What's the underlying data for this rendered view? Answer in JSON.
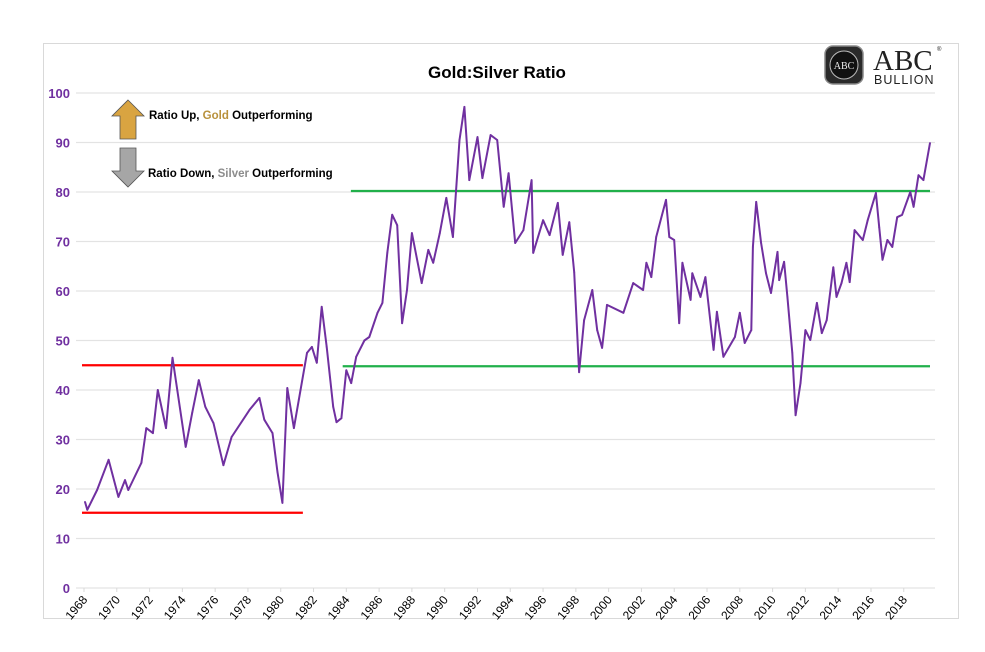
{
  "chart_data": {
    "type": "line",
    "title": "Gold:Silver Ratio",
    "xlabel": "",
    "ylabel": "",
    "xlim": [
      1968,
      2019.6
    ],
    "ylim": [
      0,
      100
    ],
    "yticks": [
      0,
      10,
      20,
      30,
      40,
      50,
      60,
      70,
      80,
      90,
      100
    ],
    "xticks": [
      1968,
      1970,
      1972,
      1974,
      1976,
      1978,
      1980,
      1982,
      1984,
      1986,
      1988,
      1990,
      1992,
      1994,
      1996,
      1998,
      2000,
      2002,
      2004,
      2006,
      2008,
      2010,
      2012,
      2014,
      2016,
      2018
    ],
    "grid": true,
    "legend": {
      "placement": "top-left",
      "up": {
        "prefix": "Ratio Up, ",
        "highlight": "Gold",
        "suffix": " Outperforming",
        "arrow_color": "#d9a441",
        "highlight_color": "#b8913c"
      },
      "down": {
        "prefix": "Ratio Down, ",
        "highlight": "Silver",
        "suffix": " Outperforming",
        "arrow_color": "#a6a6a6",
        "highlight_color": "#8c8c8c"
      }
    },
    "line_color": "#7030a0",
    "series": [
      {
        "points": [
          [
            1968.06,
            17.4
          ],
          [
            1968.2,
            15.8
          ],
          [
            1968.8,
            19.8
          ],
          [
            1969.5,
            25.9
          ],
          [
            1970.1,
            18.4
          ],
          [
            1970.5,
            21.8
          ],
          [
            1970.7,
            19.8
          ],
          [
            1971.5,
            25.3
          ],
          [
            1971.8,
            32.3
          ],
          [
            1972.2,
            31.3
          ],
          [
            1972.5,
            40
          ],
          [
            1973.0,
            32.3
          ],
          [
            1973.4,
            46.5
          ],
          [
            1974.2,
            28.5
          ],
          [
            1974.6,
            35.4
          ],
          [
            1975.0,
            42
          ],
          [
            1975.4,
            36.6
          ],
          [
            1975.9,
            33.3
          ],
          [
            1976.5,
            24.8
          ],
          [
            1977.0,
            30.5
          ],
          [
            1978.1,
            36
          ],
          [
            1978.7,
            38.4
          ],
          [
            1979.0,
            34
          ],
          [
            1979.5,
            31.3
          ],
          [
            1979.8,
            23.4
          ],
          [
            1980.1,
            17.2
          ],
          [
            1980.4,
            40.4
          ],
          [
            1980.8,
            32.3
          ],
          [
            1981.1,
            38
          ],
          [
            1981.6,
            47.5
          ],
          [
            1981.9,
            48.7
          ],
          [
            1982.2,
            45.5
          ],
          [
            1982.5,
            56.8
          ],
          [
            1982.8,
            48.7
          ],
          [
            1983.2,
            36.6
          ],
          [
            1983.4,
            33.5
          ],
          [
            1983.7,
            34.3
          ],
          [
            1984.0,
            44
          ],
          [
            1984.3,
            41.4
          ],
          [
            1984.6,
            46.7
          ],
          [
            1985.1,
            50
          ],
          [
            1985.4,
            50.7
          ],
          [
            1985.9,
            55.6
          ],
          [
            1986.2,
            57.6
          ],
          [
            1986.5,
            67.7
          ],
          [
            1986.8,
            75.4
          ],
          [
            1987.1,
            73.3
          ],
          [
            1987.4,
            53.5
          ],
          [
            1987.7,
            60.2
          ],
          [
            1988.0,
            71.7
          ],
          [
            1988.6,
            61.6
          ],
          [
            1989.0,
            68.3
          ],
          [
            1989.3,
            65.7
          ],
          [
            1989.7,
            71.7
          ],
          [
            1990.1,
            78.8
          ],
          [
            1990.5,
            70.9
          ],
          [
            1990.9,
            90.5
          ],
          [
            1991.2,
            97.2
          ],
          [
            1991.5,
            82.4
          ],
          [
            1992.0,
            91.1
          ],
          [
            1992.3,
            82.8
          ],
          [
            1992.8,
            91.5
          ],
          [
            1993.2,
            90.5
          ],
          [
            1993.6,
            77
          ],
          [
            1993.9,
            83.8
          ],
          [
            1994.3,
            69.7
          ],
          [
            1994.8,
            72.3
          ],
          [
            1995.3,
            82.4
          ],
          [
            1995.4,
            67.7
          ],
          [
            1996.0,
            74.3
          ],
          [
            1996.4,
            71.3
          ],
          [
            1996.9,
            77.8
          ],
          [
            1997.2,
            67.3
          ],
          [
            1997.6,
            73.9
          ],
          [
            1997.9,
            63.8
          ],
          [
            1998.2,
            43.6
          ],
          [
            1998.5,
            54.1
          ],
          [
            1999.0,
            60.2
          ],
          [
            1999.3,
            52.1
          ],
          [
            1999.6,
            48.5
          ],
          [
            1999.9,
            57.2
          ],
          [
            2000.9,
            55.6
          ],
          [
            2001.5,
            61.6
          ],
          [
            2002.1,
            60.2
          ],
          [
            2002.3,
            65.7
          ],
          [
            2002.6,
            62.8
          ],
          [
            2002.9,
            70.9
          ],
          [
            2003.5,
            78.4
          ],
          [
            2003.7,
            70.9
          ],
          [
            2004.0,
            70.3
          ],
          [
            2004.3,
            53.5
          ],
          [
            2004.5,
            65.7
          ],
          [
            2005.0,
            58.2
          ],
          [
            2005.1,
            63.6
          ],
          [
            2005.6,
            58.8
          ],
          [
            2005.9,
            62.8
          ],
          [
            2006.4,
            48.1
          ],
          [
            2006.6,
            55.8
          ],
          [
            2007.0,
            46.7
          ],
          [
            2007.7,
            50.7
          ],
          [
            2008.0,
            55.6
          ],
          [
            2008.3,
            49.5
          ],
          [
            2008.7,
            52.1
          ],
          [
            2008.8,
            68.9
          ],
          [
            2009.0,
            78
          ],
          [
            2009.3,
            69.7
          ],
          [
            2009.6,
            63.6
          ],
          [
            2009.9,
            59.6
          ],
          [
            2010.3,
            67.9
          ],
          [
            2010.4,
            62.2
          ],
          [
            2010.7,
            65.9
          ],
          [
            2010.9,
            58.8
          ],
          [
            2011.2,
            47.5
          ],
          [
            2011.4,
            34.9
          ],
          [
            2011.7,
            41.4
          ],
          [
            2012.0,
            52.1
          ],
          [
            2012.3,
            50.1
          ],
          [
            2012.7,
            57.6
          ],
          [
            2013.0,
            51.5
          ],
          [
            2013.3,
            54.1
          ],
          [
            2013.7,
            64.8
          ],
          [
            2013.9,
            58.8
          ],
          [
            2014.2,
            61.6
          ],
          [
            2014.5,
            65.7
          ],
          [
            2014.7,
            61.8
          ],
          [
            2015.0,
            72.3
          ],
          [
            2015.5,
            70.3
          ],
          [
            2015.8,
            74.3
          ],
          [
            2016.3,
            79.8
          ],
          [
            2016.5,
            72.9
          ],
          [
            2016.7,
            66.3
          ],
          [
            2017.0,
            70.3
          ],
          [
            2017.3,
            68.9
          ],
          [
            2017.6,
            74.9
          ],
          [
            2017.9,
            75.4
          ],
          [
            2018.4,
            80
          ],
          [
            2018.6,
            77
          ],
          [
            2018.9,
            83.4
          ],
          [
            2019.2,
            82.4
          ],
          [
            2019.6,
            89.9
          ]
        ]
      }
    ],
    "reference_lines": [
      {
        "color": "#ff0000",
        "value": 45,
        "x_from": 1968,
        "x_to": 1981.35
      },
      {
        "color": "#ff0000",
        "value": 15.2,
        "x_from": 1968,
        "x_to": 1981.35
      },
      {
        "color": "#21b04b",
        "value": 80.2,
        "x_from": 1984.4,
        "x_to": 2019.6
      },
      {
        "color": "#21b04b",
        "value": 44.8,
        "x_from": 1983.9,
        "x_to": 2019.6
      }
    ]
  },
  "logo": {
    "emblem_text": "ABC",
    "wordmark": "ABC",
    "subtext": "BULLION",
    "mark": "®"
  }
}
